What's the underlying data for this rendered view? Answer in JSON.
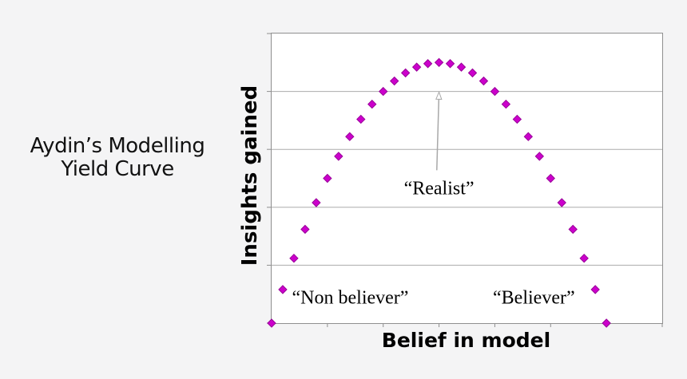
{
  "background": "#f4f4f5",
  "left_title": {
    "line1": "Aydin’s Modelling",
    "line2": "Yield Curve"
  },
  "chart": {
    "plot_bg": "#ffffff",
    "axis_color": "#8f8f8f",
    "gridline_color": "#ababab",
    "marker_color": "#cc00cc",
    "marker_edge_color": "#990099",
    "arrow_color": "#a8a8a8"
  },
  "chart_data": {
    "type": "scatter",
    "title": "Aydin’s Modelling Yield Curve",
    "xlabel": "Belief in model",
    "ylabel": "Insights gained",
    "xlim": [
      0,
      7
    ],
    "ylim": [
      0,
      5
    ],
    "x_tick_step": 1,
    "y_gridline_step": 1,
    "axis_tick_labels_visible": false,
    "grid": "horizontal",
    "legend": "none",
    "series": [
      {
        "name": "insights",
        "marker": "diamond",
        "color": "#cc00cc",
        "x": [
          0,
          0.2,
          0.4,
          0.6,
          0.8,
          1,
          1.2,
          1.4,
          1.6,
          1.8,
          2,
          2.2,
          2.4,
          2.6,
          2.8,
          3,
          3.2,
          3.4,
          3.6,
          3.8,
          4,
          4.2,
          4.4,
          4.6,
          4.8,
          5,
          5.2,
          5.4,
          5.6,
          5.8,
          6
        ],
        "y": [
          0,
          0.58,
          1.12,
          1.62,
          2.08,
          2.5,
          2.88,
          3.22,
          3.52,
          3.78,
          4.0,
          4.18,
          4.32,
          4.42,
          4.48,
          4.5,
          4.48,
          4.42,
          4.32,
          4.18,
          4.0,
          3.78,
          3.52,
          3.22,
          2.88,
          2.5,
          2.08,
          1.62,
          1.12,
          0.58,
          0
        ]
      }
    ],
    "annotations": [
      {
        "name": "non-believer",
        "text": "“Non believer”",
        "x": 1.41,
        "y": 0.43
      },
      {
        "name": "realist",
        "text": "“Realist”",
        "x": 3.0,
        "y": 2.31,
        "arrow": {
          "from": {
            "x": 2.96,
            "y": 2.64
          },
          "to": {
            "x": 3.0,
            "y": 3.99
          }
        }
      },
      {
        "name": "believer",
        "text": "“Believer”",
        "x": 4.7,
        "y": 0.43
      }
    ]
  }
}
